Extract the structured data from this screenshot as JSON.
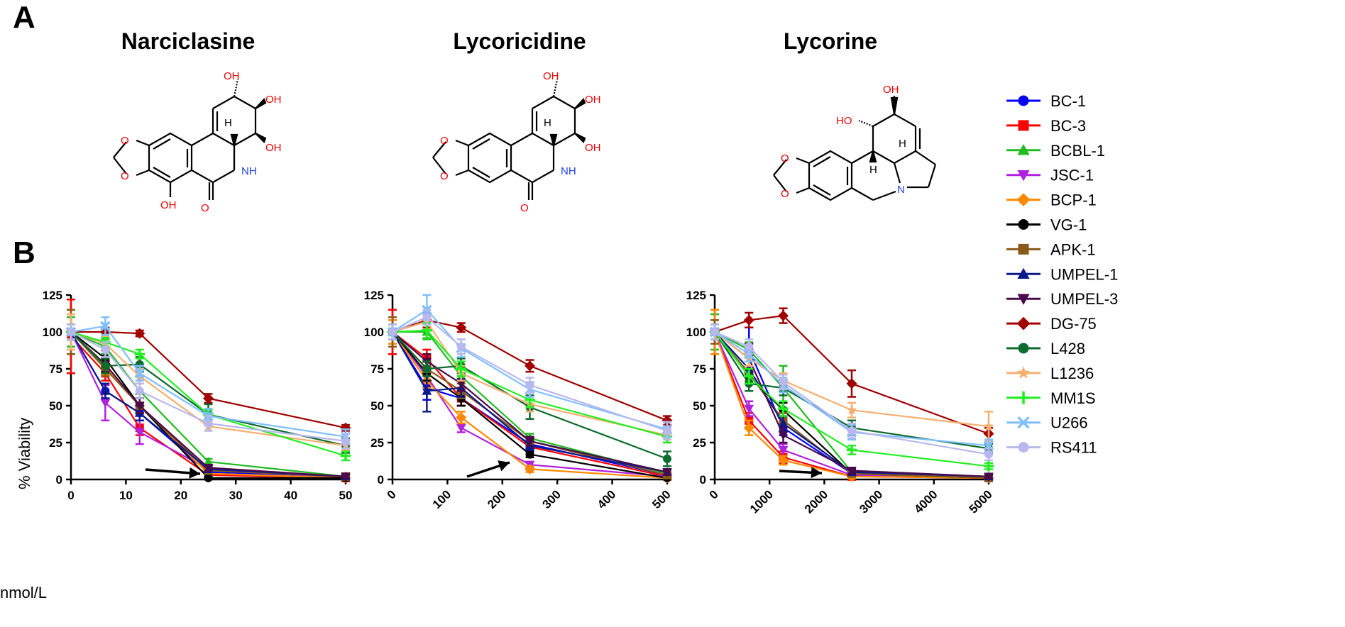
{
  "panel_a_label": "A",
  "panel_b_label": "B",
  "compounds": [
    {
      "name": "Narciclasine"
    },
    {
      "name": "Lycoricidine"
    },
    {
      "name": "Lycorine"
    }
  ],
  "structure_labels": {
    "oh": "OH",
    "ho": "HO",
    "o": "O",
    "nh": "NH",
    "n": "N",
    "h": "H"
  },
  "unit_label": "nmol/L",
  "ylabel": "% Viability",
  "colors": {
    "BC-1": "#0000ff",
    "BC-3": "#ff0000",
    "BCBL-1": "#22bb22",
    "JSC-1": "#b020e0",
    "BCP-1": "#ff8800",
    "VG-1": "#000000",
    "APK-1": "#8b5a1a",
    "UMPEL-1": "#0a1a8c",
    "UMPEL-3": "#4a0a4a",
    "DG-75": "#a00000",
    "L428": "#0d6b2e",
    "L1236": "#f5b070",
    "MM1S": "#22ee22",
    "U266": "#7fbfff",
    "RS411": "#b8b8ee"
  },
  "legend": [
    {
      "name": "BC-1",
      "marker": "circle"
    },
    {
      "name": "BC-3",
      "marker": "square"
    },
    {
      "name": "BCBL-1",
      "marker": "triangle"
    },
    {
      "name": "JSC-1",
      "marker": "triangle-down"
    },
    {
      "name": "BCP-1",
      "marker": "diamond"
    },
    {
      "name": "VG-1",
      "marker": "circle"
    },
    {
      "name": "APK-1",
      "marker": "square"
    },
    {
      "name": "UMPEL-1",
      "marker": "triangle"
    },
    {
      "name": "UMPEL-3",
      "marker": "triangle-down"
    },
    {
      "name": "DG-75",
      "marker": "diamond"
    },
    {
      "name": "L428",
      "marker": "circle"
    },
    {
      "name": "L1236",
      "marker": "star"
    },
    {
      "name": "MM1S",
      "marker": "plus"
    },
    {
      "name": "U266",
      "marker": "cross"
    },
    {
      "name": "RS411",
      "marker": "circle"
    }
  ],
  "chart_data": [
    {
      "type": "line",
      "title": "",
      "xlabel": "",
      "ylabel": "% Viability",
      "xlim": [
        0,
        50
      ],
      "ylim": [
        0,
        125
      ],
      "xticks": [
        0,
        10,
        20,
        30,
        40,
        50
      ],
      "yticks": [
        0,
        25,
        50,
        75,
        100,
        125
      ],
      "x": [
        0,
        6.25,
        12.5,
        25,
        50
      ],
      "series": [
        {
          "name": "BC-1",
          "values": [
            100,
            60,
            45,
            5,
            2
          ],
          "err": [
            5,
            5,
            5,
            2,
            1
          ]
        },
        {
          "name": "BC-3",
          "values": [
            97,
            72,
            35,
            3,
            1
          ],
          "err": [
            25,
            5,
            5,
            1,
            1
          ]
        },
        {
          "name": "BCBL-1",
          "values": [
            100,
            90,
            60,
            12,
            2
          ],
          "err": [
            10,
            5,
            5,
            2,
            1
          ]
        },
        {
          "name": "JSC-1",
          "values": [
            100,
            52,
            32,
            7,
            1
          ],
          "err": [
            5,
            12,
            8,
            2,
            1
          ]
        },
        {
          "name": "BCP-1",
          "values": [
            100,
            76,
            50,
            4,
            1
          ],
          "err": [
            15,
            5,
            5,
            1,
            1
          ]
        },
        {
          "name": "VG-1",
          "values": [
            100,
            82,
            50,
            1,
            1
          ],
          "err": [
            5,
            5,
            5,
            1,
            1
          ]
        },
        {
          "name": "APK-1",
          "values": [
            100,
            75,
            50,
            6,
            2
          ],
          "err": [
            15,
            5,
            5,
            2,
            1
          ]
        },
        {
          "name": "UMPEL-1",
          "values": [
            100,
            60,
            45,
            7,
            2
          ],
          "err": [
            5,
            5,
            5,
            2,
            1
          ]
        },
        {
          "name": "UMPEL-3",
          "values": [
            100,
            78,
            50,
            8,
            2
          ],
          "err": [
            5,
            5,
            5,
            2,
            1
          ]
        },
        {
          "name": "DG-75",
          "values": [
            100,
            100,
            99,
            55,
            35
          ],
          "err": [
            5,
            3,
            2,
            3,
            2
          ]
        },
        {
          "name": "L428",
          "values": [
            100,
            77,
            78,
            44,
            23
          ],
          "err": [
            5,
            5,
            5,
            7,
            5
          ]
        },
        {
          "name": "L1236",
          "values": [
            100,
            92,
            70,
            36,
            23
          ],
          "err": [
            12,
            5,
            5,
            3,
            3
          ]
        },
        {
          "name": "MM1S",
          "values": [
            100,
            93,
            85,
            44,
            16
          ],
          "err": [
            5,
            3,
            3,
            3,
            3
          ]
        },
        {
          "name": "U266",
          "values": [
            100,
            104,
            72,
            43,
            29
          ],
          "err": [
            5,
            6,
            5,
            5,
            5
          ]
        },
        {
          "name": "RS411",
          "values": [
            100,
            88,
            60,
            38,
            26
          ],
          "err": [
            5,
            5,
            5,
            5,
            5
          ]
        }
      ]
    },
    {
      "type": "line",
      "title": "",
      "xlabel": "",
      "ylabel": "",
      "xlim": [
        0,
        500
      ],
      "ylim": [
        0,
        125
      ],
      "xticks": [
        0,
        100,
        200,
        300,
        400,
        500
      ],
      "yticks": [
        0,
        25,
        50,
        75,
        100,
        125
      ],
      "x": [
        0,
        62.5,
        125,
        250,
        500
      ],
      "series": [
        {
          "name": "BC-1",
          "values": [
            100,
            62,
            55,
            24,
            3
          ],
          "err": [
            5,
            8,
            5,
            3,
            2
          ]
        },
        {
          "name": "BC-3",
          "values": [
            100,
            82,
            55,
            22,
            2
          ],
          "err": [
            15,
            6,
            5,
            3,
            1
          ]
        },
        {
          "name": "BCBL-1",
          "values": [
            100,
            100,
            70,
            28,
            4
          ],
          "err": [
            5,
            5,
            5,
            3,
            2
          ]
        },
        {
          "name": "JSC-1",
          "values": [
            100,
            70,
            35,
            10,
            2
          ],
          "err": [
            5,
            5,
            3,
            2,
            1
          ]
        },
        {
          "name": "BCP-1",
          "values": [
            100,
            67,
            42,
            7,
            1
          ],
          "err": [
            8,
            5,
            4,
            2,
            1
          ]
        },
        {
          "name": "VG-1",
          "values": [
            100,
            72,
            55,
            17,
            1
          ],
          "err": [
            5,
            5,
            5,
            2,
            1
          ]
        },
        {
          "name": "APK-1",
          "values": [
            100,
            75,
            60,
            26,
            3
          ],
          "err": [
            10,
            5,
            5,
            3,
            2
          ]
        },
        {
          "name": "UMPEL-1",
          "values": [
            100,
            60,
            62,
            23,
            5
          ],
          "err": [
            5,
            14,
            6,
            3,
            2
          ]
        },
        {
          "name": "UMPEL-3",
          "values": [
            100,
            80,
            65,
            26,
            5
          ],
          "err": [
            5,
            5,
            5,
            3,
            2
          ]
        },
        {
          "name": "DG-75",
          "values": [
            100,
            108,
            103,
            77,
            40
          ],
          "err": [
            5,
            5,
            3,
            4,
            3
          ]
        },
        {
          "name": "L428",
          "values": [
            100,
            75,
            77,
            49,
            14
          ],
          "err": [
            5,
            5,
            5,
            8,
            5
          ]
        },
        {
          "name": "L1236",
          "values": [
            100,
            107,
            72,
            51,
            30
          ],
          "err": [
            5,
            5,
            5,
            5,
            5
          ]
        },
        {
          "name": "MM1S",
          "values": [
            100,
            101,
            75,
            54,
            29
          ],
          "err": [
            5,
            5,
            5,
            5,
            4
          ]
        },
        {
          "name": "U266",
          "values": [
            100,
            115,
            89,
            61,
            34
          ],
          "err": [
            5,
            10,
            6,
            5,
            5
          ]
        },
        {
          "name": "RS411",
          "values": [
            100,
            110,
            90,
            64,
            33
          ],
          "err": [
            5,
            5,
            5,
            5,
            6
          ]
        }
      ]
    },
    {
      "type": "line",
      "title": "",
      "xlabel": "",
      "ylabel": "",
      "xlim": [
        0,
        5000
      ],
      "ylim": [
        0,
        125
      ],
      "xticks": [
        0,
        1000,
        2000,
        3000,
        4000,
        5000
      ],
      "yticks": [
        0,
        25,
        50,
        75,
        100,
        125
      ],
      "x": [
        0,
        625,
        1250,
        2500,
        5000
      ],
      "series": [
        {
          "name": "BC-1",
          "values": [
            100,
            88,
            35,
            4,
            1
          ],
          "err": [
            5,
            15,
            5,
            2,
            1
          ]
        },
        {
          "name": "BC-3",
          "values": [
            100,
            40,
            15,
            2,
            1
          ],
          "err": [
            15,
            5,
            4,
            1,
            1
          ]
        },
        {
          "name": "BCBL-1",
          "values": [
            100,
            88,
            62,
            5,
            2
          ],
          "err": [
            12,
            5,
            15,
            2,
            1
          ]
        },
        {
          "name": "JSC-1",
          "values": [
            100,
            48,
            20,
            3,
            1
          ],
          "err": [
            5,
            5,
            4,
            2,
            1
          ]
        },
        {
          "name": "BCP-1",
          "values": [
            100,
            35,
            13,
            2,
            1
          ],
          "err": [
            15,
            5,
            3,
            1,
            1
          ]
        },
        {
          "name": "VG-1",
          "values": [
            100,
            70,
            47,
            4,
            1
          ],
          "err": [
            5,
            5,
            5,
            2,
            1
          ]
        },
        {
          "name": "APK-1",
          "values": [
            100,
            72,
            40,
            4,
            1
          ],
          "err": [
            8,
            5,
            5,
            2,
            1
          ]
        },
        {
          "name": "UMPEL-1",
          "values": [
            100,
            75,
            38,
            5,
            2
          ],
          "err": [
            5,
            10,
            5,
            2,
            1
          ]
        },
        {
          "name": "UMPEL-3",
          "values": [
            100,
            82,
            30,
            6,
            2
          ],
          "err": [
            5,
            10,
            5,
            2,
            1
          ]
        },
        {
          "name": "DG-75",
          "values": [
            100,
            108,
            111,
            65,
            31
          ],
          "err": [
            5,
            5,
            5,
            9,
            4
          ]
        },
        {
          "name": "L428",
          "values": [
            100,
            65,
            62,
            35,
            21
          ],
          "err": [
            5,
            5,
            5,
            5,
            3
          ]
        },
        {
          "name": "L1236",
          "values": [
            100,
            82,
            67,
            47,
            36
          ],
          "err": [
            5,
            5,
            5,
            5,
            10
          ]
        },
        {
          "name": "MM1S",
          "values": [
            100,
            70,
            48,
            20,
            9
          ],
          "err": [
            5,
            5,
            5,
            3,
            2
          ]
        },
        {
          "name": "U266",
          "values": [
            100,
            85,
            64,
            32,
            23
          ],
          "err": [
            5,
            5,
            5,
            5,
            4
          ]
        },
        {
          "name": "RS411",
          "values": [
            100,
            90,
            66,
            33,
            17
          ],
          "err": [
            5,
            5,
            5,
            5,
            4
          ]
        }
      ]
    }
  ]
}
